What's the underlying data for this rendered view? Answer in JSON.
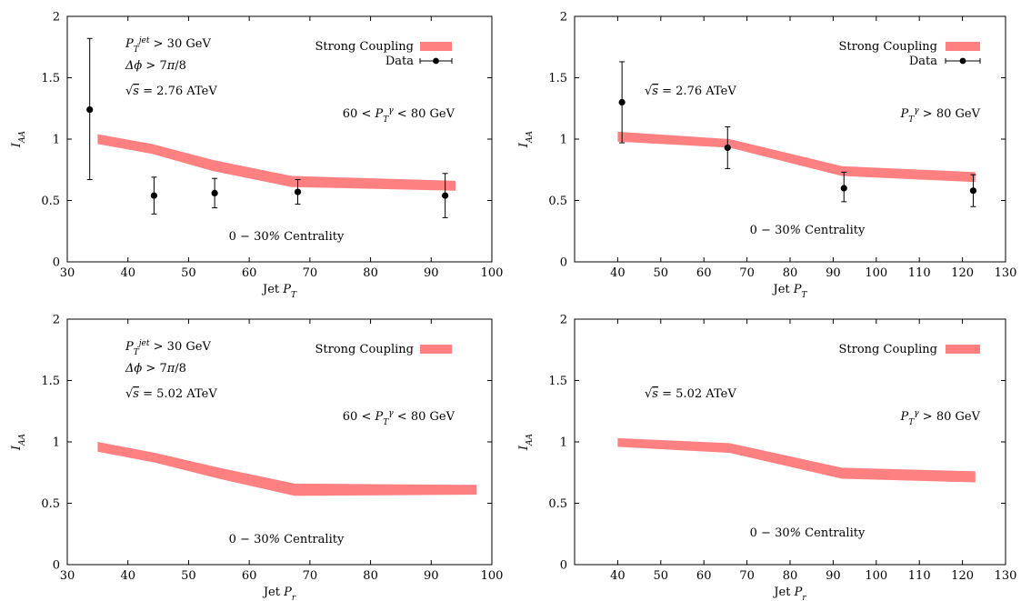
{
  "chart_data": [
    {
      "id": "tl",
      "type": "area",
      "xlabel": "Jet $P_T$",
      "ylabel": "$I_{AA}$",
      "xlim": [
        30,
        100
      ],
      "ylim": [
        0,
        2
      ],
      "xticks": [
        30,
        40,
        50,
        60,
        70,
        80,
        90,
        100
      ],
      "xtick_labels": [
        "30",
        "40",
        "50",
        "60",
        "70",
        "80",
        "90",
        "100"
      ],
      "yticks": [
        0,
        0.5,
        1,
        1.5,
        2
      ],
      "ytick_labels": [
        "0",
        "0.5",
        "1",
        "1.5",
        "2"
      ],
      "annotations": [
        "$P_T^{jet} > 30$ GeV",
        "$\\Delta\\phi > 7\\pi/8$",
        "$\\sqrt{s} = 2.76$ ATeV",
        "$60 < P_T^{\\gamma} < 80$ GeV",
        "$0-30\\%$ Centrality"
      ],
      "legend": [
        "Strong Coupling",
        "Data"
      ],
      "series": [
        {
          "name": "Strong Coupling",
          "type": "band",
          "x": [
            35,
            44,
            54,
            67,
            94
          ],
          "lower": [
            0.96,
            0.88,
            0.74,
            0.61,
            0.58
          ],
          "upper": [
            1.04,
            0.96,
            0.83,
            0.7,
            0.66
          ]
        },
        {
          "name": "Data",
          "type": "errorbar",
          "x": [
            33.7,
            44.3,
            54.3,
            68,
            92.3
          ],
          "y": [
            1.24,
            0.54,
            0.56,
            0.57,
            0.54
          ],
          "err_low": [
            0.57,
            0.15,
            0.12,
            0.1,
            0.18
          ],
          "err_high": [
            0.58,
            0.15,
            0.12,
            0.1,
            0.18
          ]
        }
      ]
    },
    {
      "id": "tr",
      "type": "area",
      "xlabel": "Jet $P_T$",
      "ylabel": "$I_{AA}$",
      "xlim": [
        30,
        130
      ],
      "ylim": [
        0,
        2
      ],
      "xticks": [
        40,
        50,
        60,
        70,
        80,
        90,
        100,
        110,
        120,
        130
      ],
      "xtick_labels": [
        "40",
        "50",
        "60",
        "70",
        "80",
        "90",
        "100",
        "110",
        "120",
        "130"
      ],
      "yticks": [
        0,
        0.5,
        1,
        1.5,
        2
      ],
      "ytick_labels": [
        "0",
        "0.5",
        "1",
        "1.5",
        "2"
      ],
      "annotations": [
        "$\\sqrt{s} = 2.76$ ATeV",
        "$P_T^{\\gamma} > 80$ GeV",
        "$0-30\\%$ Centrality"
      ],
      "legend": [
        "Strong Coupling",
        "Data"
      ],
      "series": [
        {
          "name": "Strong Coupling",
          "type": "band",
          "x": [
            40,
            66,
            92,
            123
          ],
          "lower": [
            0.98,
            0.93,
            0.7,
            0.65
          ],
          "upper": [
            1.06,
            1.0,
            0.78,
            0.73
          ]
        },
        {
          "name": "Data",
          "type": "errorbar",
          "x": [
            41,
            65.5,
            92.5,
            122.5
          ],
          "y": [
            1.3,
            0.93,
            0.6,
            0.58
          ],
          "err_low": [
            0.33,
            0.17,
            0.11,
            0.13
          ],
          "err_high": [
            0.33,
            0.17,
            0.13,
            0.13
          ]
        }
      ]
    },
    {
      "id": "bl",
      "type": "area",
      "xlabel": "Jet $P_r$",
      "ylabel": "$I_{AA}$",
      "xlim": [
        30,
        100
      ],
      "ylim": [
        0,
        2
      ],
      "xticks": [
        30,
        40,
        50,
        60,
        70,
        80,
        90,
        100
      ],
      "xtick_labels": [
        "30",
        "40",
        "50",
        "60",
        "70",
        "80",
        "90",
        "100"
      ],
      "yticks": [
        0,
        0.5,
        1,
        1.5,
        2
      ],
      "ytick_labels": [
        "0",
        "0.5",
        "1",
        "1.5",
        "2"
      ],
      "annotations": [
        "$P_T^{jet} > 30$ GeV",
        "$\\Delta\\phi > 7\\pi/8$",
        "$\\sqrt{s} = 5.02$ ATeV",
        "$60 < P_T^{\\gamma} < 80$ GeV",
        "$0-30\\%$ Centrality"
      ],
      "legend": [
        "Strong Coupling"
      ],
      "series": [
        {
          "name": "Strong Coupling",
          "type": "band",
          "x": [
            35,
            44.5,
            55,
            67.5,
            97.5
          ],
          "lower": [
            0.92,
            0.83,
            0.7,
            0.56,
            0.57
          ],
          "upper": [
            1.0,
            0.91,
            0.79,
            0.66,
            0.65
          ]
        }
      ]
    },
    {
      "id": "br",
      "type": "area",
      "xlabel": "Jet $P_r$",
      "ylabel": "$I_{AA}$",
      "xlim": [
        30,
        130
      ],
      "ylim": [
        0,
        2
      ],
      "xticks": [
        40,
        50,
        60,
        70,
        80,
        90,
        100,
        110,
        120,
        130
      ],
      "xtick_labels": [
        "40",
        "50",
        "60",
        "70",
        "80",
        "90",
        "100",
        "110",
        "120",
        "130"
      ],
      "yticks": [
        0,
        0.5,
        1,
        1.5,
        2
      ],
      "ytick_labels": [
        "0",
        "0.5",
        "1",
        "1.5",
        "2"
      ],
      "annotations": [
        "$\\sqrt{s} = 5.02$ ATeV",
        "$P_T^{\\gamma} > 80$ GeV",
        "$0-30\\%$ Centrality"
      ],
      "legend": [
        "Strong Coupling"
      ],
      "series": [
        {
          "name": "Strong Coupling",
          "type": "band",
          "x": [
            40,
            66,
            92,
            123
          ],
          "lower": [
            0.96,
            0.91,
            0.7,
            0.67
          ],
          "upper": [
            1.03,
            0.99,
            0.79,
            0.76
          ]
        }
      ]
    }
  ],
  "colors": {
    "band": "#ff8080",
    "data": "#000000",
    "axis": "#000000"
  }
}
